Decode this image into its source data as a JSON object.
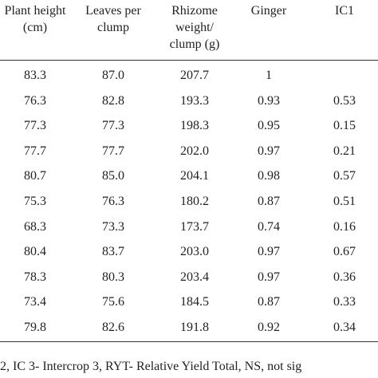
{
  "table": {
    "headers": [
      [
        "Plant height",
        "(cm)"
      ],
      [
        "Leaves per",
        "clump"
      ],
      [
        "Rhizome",
        "weight/",
        "clump (g)"
      ],
      [
        "Ginger"
      ],
      [
        "IC1"
      ]
    ],
    "rows": [
      [
        "83.3",
        "87.0",
        "207.7",
        "1",
        ""
      ],
      [
        "76.3",
        "82.8",
        "193.3",
        "0.93",
        "0.53"
      ],
      [
        "77.3",
        "77.3",
        "198.3",
        "0.95",
        "0.15"
      ],
      [
        "77.7",
        "77.7",
        "202.0",
        "0.97",
        "0.21"
      ],
      [
        "80.7",
        "85.0",
        "204.1",
        "0.98",
        "0.57"
      ],
      [
        "75.3",
        "76.3",
        "180.2",
        "0.87",
        "0.51"
      ],
      [
        "68.3",
        "73.3",
        "173.7",
        "0.74",
        "0.16"
      ],
      [
        "80.4",
        "83.7",
        "203.0",
        "0.97",
        "0.67"
      ],
      [
        "78.3",
        "80.3",
        "203.4",
        "0.97",
        "0.36"
      ],
      [
        "73.4",
        "75.6",
        "184.5",
        "0.87",
        "0.33"
      ],
      [
        "79.8",
        "82.6",
        "191.8",
        "0.92",
        "0.34"
      ]
    ],
    "footnote": "2, IC 3- Intercrop 3, RYT- Relative Yield Total, NS, not sig"
  }
}
